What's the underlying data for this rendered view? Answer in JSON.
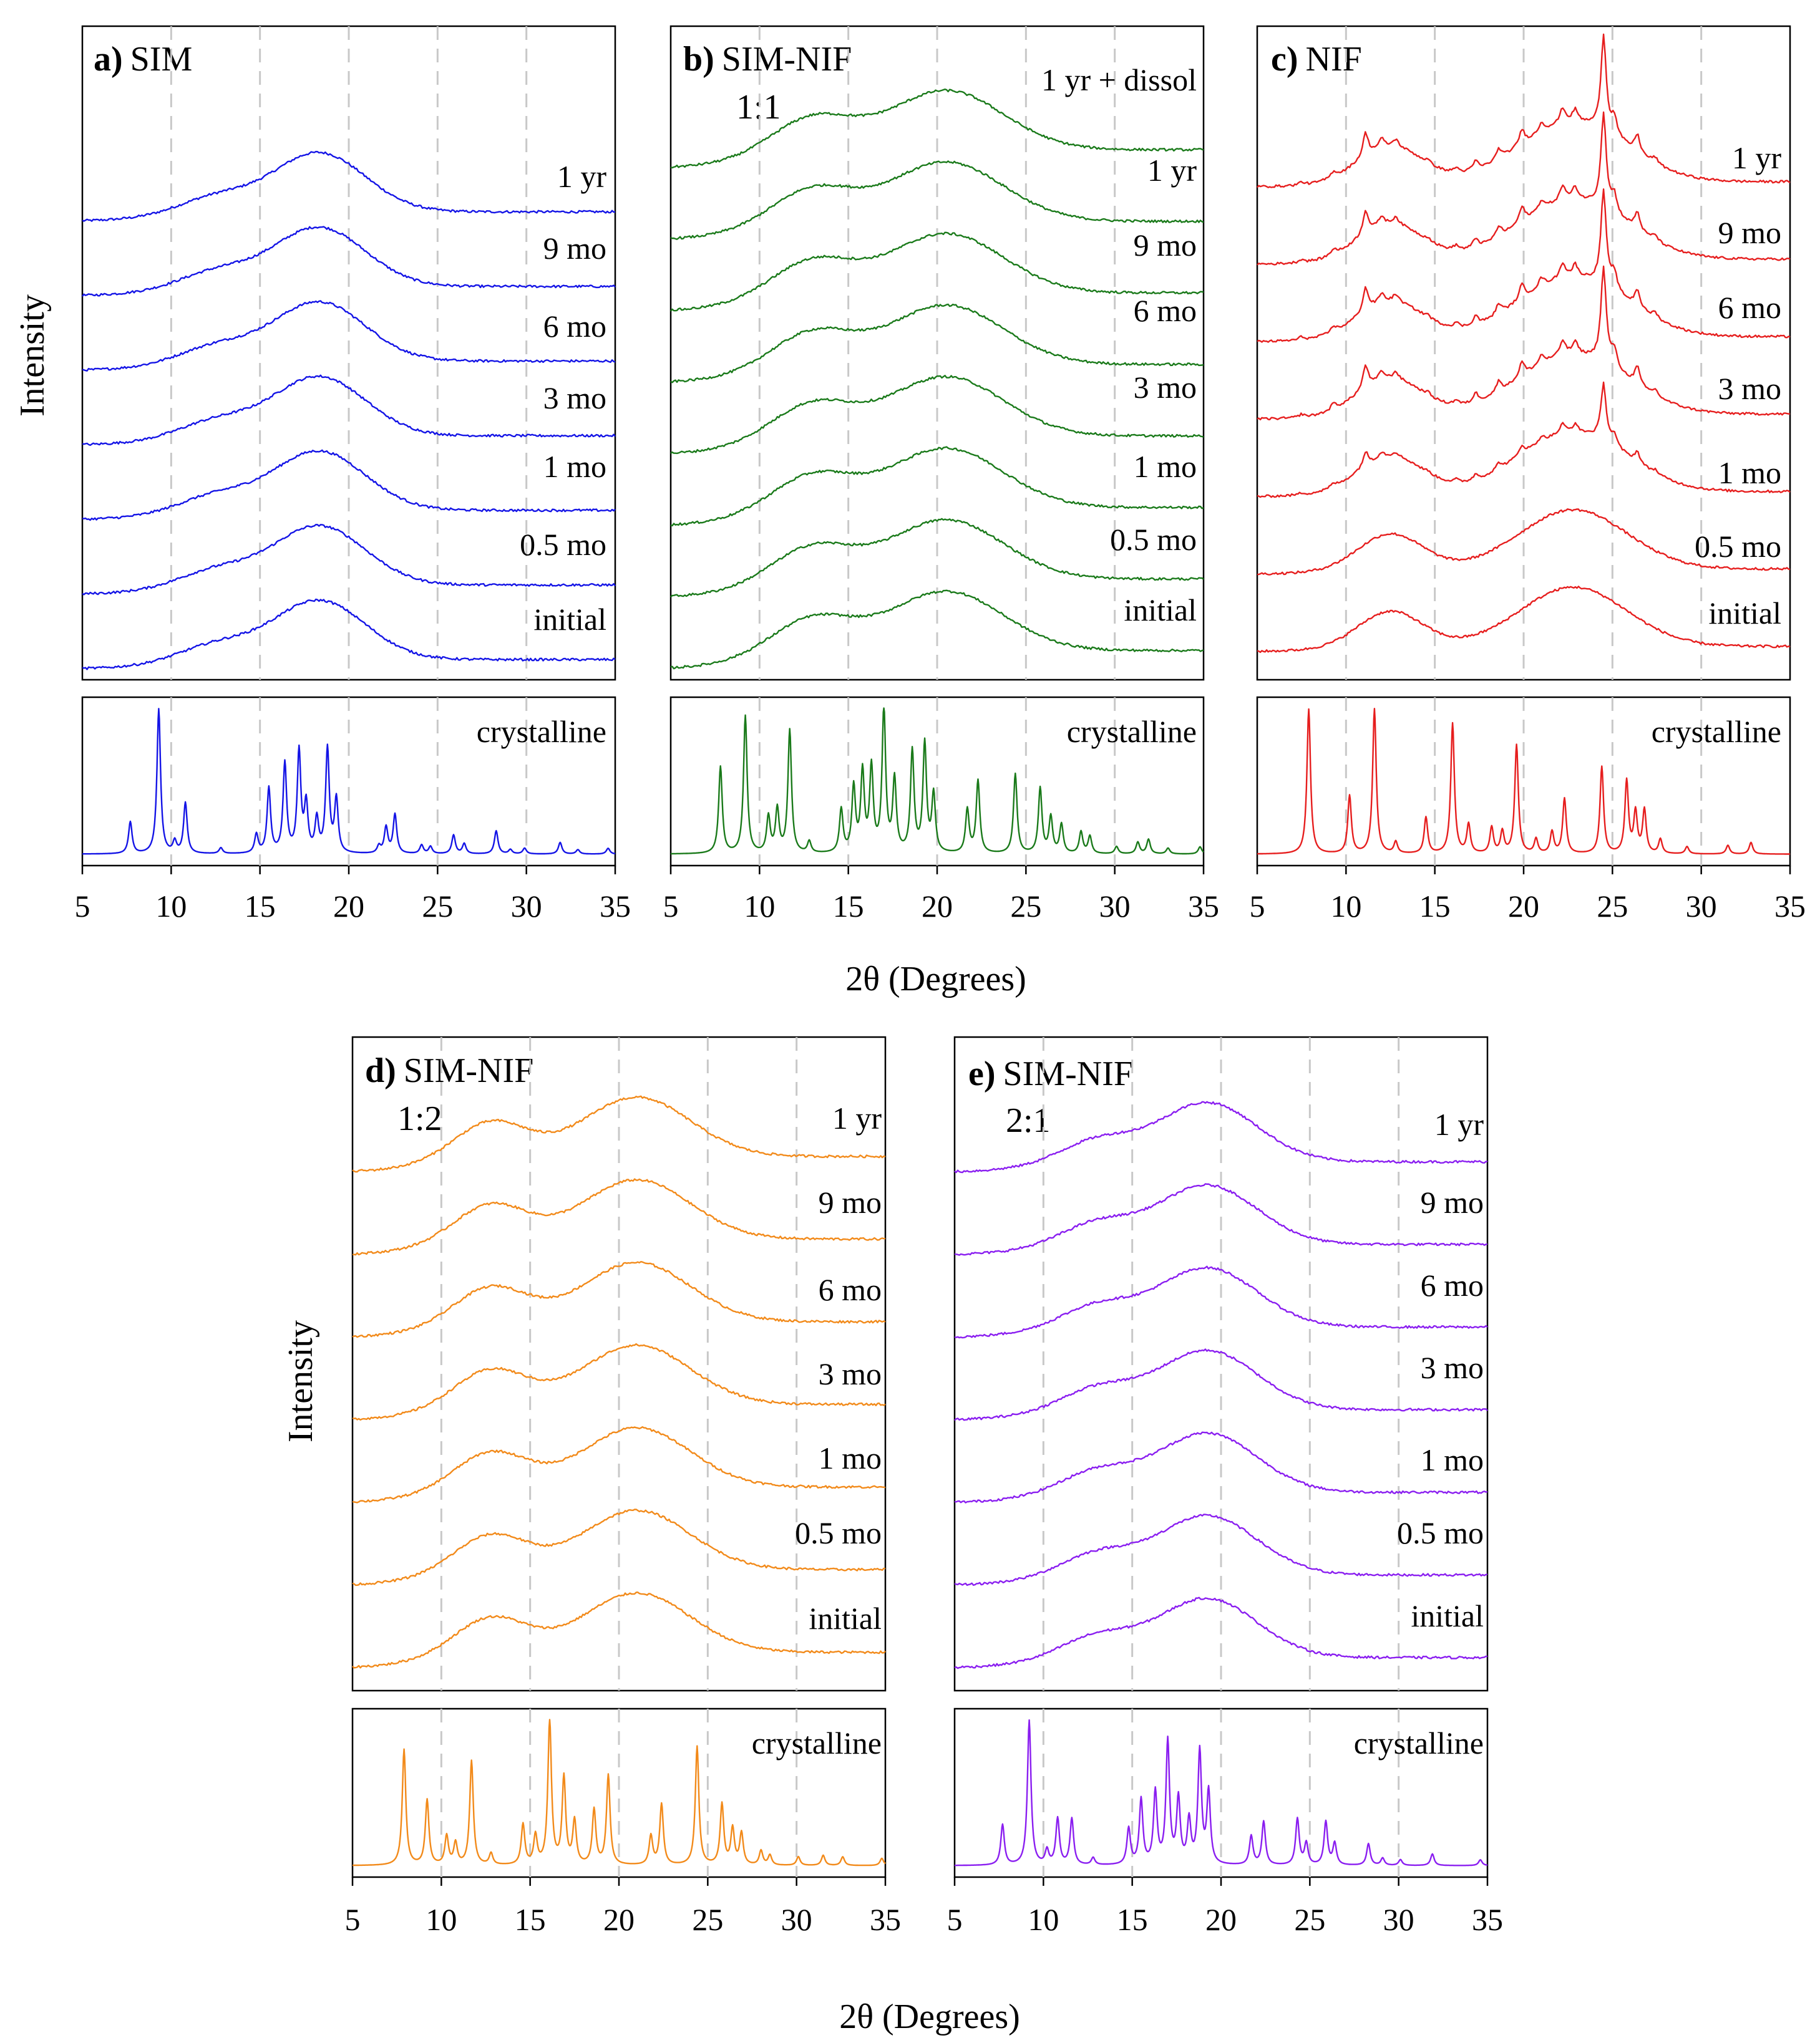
{
  "chart_data": [
    {
      "type": "line",
      "panel_letter": "a)",
      "title": "SIM",
      "subtitle": "",
      "color": "#1414e6",
      "xlabel": "2θ (Degrees)",
      "ylabel": "Intensity",
      "xlim": [
        5,
        35
      ],
      "xticks": [
        5,
        10,
        15,
        20,
        25,
        30,
        35
      ],
      "gridlines_x": [
        10,
        15,
        20,
        25,
        30
      ],
      "amorphous_profile": {
        "humps": [
          {
            "center": 18.3,
            "width": 2.6,
            "height": 1.0
          },
          {
            "center": 12.5,
            "width": 2.0,
            "height": 0.25
          }
        ],
        "start_level": 0.0,
        "end_level": 0.18
      },
      "series": [
        {
          "name": "1 yr"
        },
        {
          "name": "9 mo"
        },
        {
          "name": "6 mo"
        },
        {
          "name": "3 mo"
        },
        {
          "name": "1 mo"
        },
        {
          "name": "0.5 mo"
        },
        {
          "name": "initial"
        }
      ],
      "crystalline": {
        "name": "crystalline",
        "peaks": [
          [
            7.7,
            0.22
          ],
          [
            9.3,
            1.0
          ],
          [
            10.2,
            0.08
          ],
          [
            10.8,
            0.35
          ],
          [
            12.8,
            0.04
          ],
          [
            14.8,
            0.13
          ],
          [
            15.5,
            0.45
          ],
          [
            16.4,
            0.62
          ],
          [
            17.2,
            0.7
          ],
          [
            17.6,
            0.33
          ],
          [
            18.2,
            0.23
          ],
          [
            18.8,
            0.72
          ],
          [
            19.3,
            0.37
          ],
          [
            21.7,
            0.05
          ],
          [
            22.1,
            0.18
          ],
          [
            22.6,
            0.27
          ],
          [
            24.1,
            0.06
          ],
          [
            24.6,
            0.05
          ],
          [
            25.9,
            0.13
          ],
          [
            26.5,
            0.07
          ],
          [
            28.3,
            0.16
          ],
          [
            29.1,
            0.03
          ],
          [
            29.9,
            0.04
          ],
          [
            31.9,
            0.08
          ],
          [
            32.9,
            0.03
          ],
          [
            34.6,
            0.04
          ]
        ]
      }
    },
    {
      "type": "line",
      "panel_letter": "b)",
      "title": "SIM-NIF",
      "subtitle": "1:1",
      "color": "#1a7a1a",
      "xlabel": "2θ (Degrees)",
      "ylabel": "",
      "xlim": [
        5,
        35
      ],
      "xticks": [
        5,
        10,
        15,
        20,
        25,
        30,
        35
      ],
      "gridlines_x": [
        10,
        15,
        20,
        25,
        30
      ],
      "amorphous_profile": {
        "humps": [
          {
            "center": 20.5,
            "width": 3.2,
            "height": 1.0
          },
          {
            "center": 13.0,
            "width": 2.2,
            "height": 0.55
          }
        ],
        "start_level": 0.0,
        "end_level": 0.35
      },
      "series": [
        {
          "name": "1 yr + dissol"
        },
        {
          "name": "1 yr"
        },
        {
          "name": "9 mo"
        },
        {
          "name": "6 mo"
        },
        {
          "name": "3 mo"
        },
        {
          "name": "1 mo"
        },
        {
          "name": "0.5 mo"
        },
        {
          "name": "initial"
        }
      ],
      "crystalline": {
        "name": "crystalline",
        "peaks": [
          [
            7.8,
            0.6
          ],
          [
            9.2,
            0.95
          ],
          [
            10.5,
            0.25
          ],
          [
            11.0,
            0.3
          ],
          [
            11.7,
            0.85
          ],
          [
            12.8,
            0.08
          ],
          [
            14.6,
            0.3
          ],
          [
            15.3,
            0.45
          ],
          [
            15.8,
            0.55
          ],
          [
            16.3,
            0.58
          ],
          [
            17.0,
            1.0
          ],
          [
            17.6,
            0.5
          ],
          [
            18.6,
            0.7
          ],
          [
            19.3,
            0.75
          ],
          [
            19.8,
            0.4
          ],
          [
            21.7,
            0.3
          ],
          [
            22.3,
            0.5
          ],
          [
            24.4,
            0.55
          ],
          [
            25.8,
            0.45
          ],
          [
            26.4,
            0.25
          ],
          [
            27.0,
            0.2
          ],
          [
            28.1,
            0.15
          ],
          [
            28.6,
            0.12
          ],
          [
            30.1,
            0.05
          ],
          [
            31.3,
            0.08
          ],
          [
            31.9,
            0.1
          ],
          [
            33.0,
            0.04
          ],
          [
            34.8,
            0.05
          ]
        ]
      }
    },
    {
      "type": "line",
      "panel_letter": "c)",
      "title": "NIF",
      "subtitle": "",
      "color": "#e61e1e",
      "xlabel": "2θ (Degrees)",
      "ylabel": "",
      "xlim": [
        5,
        35
      ],
      "xticks": [
        5,
        10,
        15,
        20,
        25,
        30,
        35
      ],
      "gridlines_x": [
        10,
        15,
        20,
        25,
        30
      ],
      "amorphous_profile": {
        "humps": [
          {
            "center": 22.8,
            "width": 3.0,
            "height": 1.0
          },
          {
            "center": 12.5,
            "width": 1.8,
            "height": 0.6
          }
        ],
        "start_level": 0.0,
        "end_level": 0.1
      },
      "series": [
        {
          "name": "1 yr",
          "crystallinity": 1.0
        },
        {
          "name": "9 mo",
          "crystallinity": 1.0
        },
        {
          "name": "6 mo",
          "crystallinity": 1.0
        },
        {
          "name": "3 mo",
          "crystallinity": 1.0
        },
        {
          "name": "1 mo",
          "crystallinity": 0.6
        },
        {
          "name": "0.5 mo",
          "crystallinity": 0.0
        },
        {
          "name": "initial",
          "crystallinity": 0.0
        }
      ],
      "aged_peaks": [
        [
          7.5,
          0.05
        ],
        [
          9.3,
          0.1
        ],
        [
          11.1,
          0.4
        ],
        [
          12.0,
          0.15
        ],
        [
          12.8,
          0.12
        ],
        [
          14.6,
          0.05
        ],
        [
          16.2,
          0.08
        ],
        [
          17.3,
          0.15
        ],
        [
          18.6,
          0.18
        ],
        [
          19.9,
          0.25
        ],
        [
          21.0,
          0.15
        ],
        [
          22.2,
          0.25
        ],
        [
          22.9,
          0.2
        ],
        [
          24.5,
          1.6
        ],
        [
          25.1,
          0.3
        ],
        [
          26.4,
          0.3
        ],
        [
          27.4,
          0.1
        ]
      ],
      "crystalline": {
        "name": "crystalline",
        "peaks": [
          [
            7.9,
            1.0
          ],
          [
            10.2,
            0.4
          ],
          [
            11.6,
            1.0
          ],
          [
            12.8,
            0.08
          ],
          [
            14.5,
            0.25
          ],
          [
            16.0,
            0.9
          ],
          [
            16.9,
            0.2
          ],
          [
            18.2,
            0.18
          ],
          [
            18.8,
            0.15
          ],
          [
            19.6,
            0.75
          ],
          [
            20.7,
            0.1
          ],
          [
            21.6,
            0.15
          ],
          [
            22.3,
            0.38
          ],
          [
            24.4,
            0.6
          ],
          [
            25.8,
            0.5
          ],
          [
            26.3,
            0.28
          ],
          [
            26.8,
            0.3
          ],
          [
            27.7,
            0.1
          ],
          [
            29.2,
            0.05
          ],
          [
            31.5,
            0.06
          ],
          [
            32.8,
            0.08
          ]
        ]
      }
    },
    {
      "type": "line",
      "panel_letter": "d)",
      "title": "SIM-NIF",
      "subtitle": "1:2",
      "color": "#f28a1a",
      "xlabel": "2θ (Degrees)",
      "ylabel": "Intensity",
      "xlim": [
        5,
        35
      ],
      "xticks": [
        5,
        10,
        15,
        20,
        25,
        30,
        35
      ],
      "gridlines_x": [
        10,
        15,
        20,
        25,
        30
      ],
      "amorphous_profile": {
        "humps": [
          {
            "center": 21.0,
            "width": 3.0,
            "height": 1.0
          },
          {
            "center": 12.8,
            "width": 2.0,
            "height": 0.6
          }
        ],
        "start_level": 0.0,
        "end_level": 0.3
      },
      "series": [
        {
          "name": "1 yr"
        },
        {
          "name": "9 mo"
        },
        {
          "name": "6 mo"
        },
        {
          "name": "3 mo"
        },
        {
          "name": "1 mo"
        },
        {
          "name": "0.5 mo"
        },
        {
          "name": "initial"
        }
      ],
      "crystalline": {
        "name": "crystalline",
        "peaks": [
          [
            7.9,
            0.8
          ],
          [
            9.2,
            0.45
          ],
          [
            10.3,
            0.2
          ],
          [
            10.8,
            0.15
          ],
          [
            11.7,
            0.72
          ],
          [
            12.8,
            0.08
          ],
          [
            14.6,
            0.28
          ],
          [
            15.3,
            0.2
          ],
          [
            16.1,
            1.0
          ],
          [
            16.9,
            0.6
          ],
          [
            17.5,
            0.3
          ],
          [
            18.6,
            0.38
          ],
          [
            19.4,
            0.62
          ],
          [
            21.8,
            0.2
          ],
          [
            22.4,
            0.42
          ],
          [
            24.4,
            0.82
          ],
          [
            25.8,
            0.42
          ],
          [
            26.4,
            0.25
          ],
          [
            26.9,
            0.22
          ],
          [
            28.0,
            0.1
          ],
          [
            28.5,
            0.07
          ],
          [
            30.1,
            0.06
          ],
          [
            31.5,
            0.07
          ],
          [
            32.6,
            0.06
          ],
          [
            34.8,
            0.05
          ]
        ]
      }
    },
    {
      "type": "line",
      "panel_letter": "e)",
      "title": "SIM-NIF",
      "subtitle": "2:1",
      "color": "#8a1ef0",
      "xlabel": "2θ (Degrees)",
      "ylabel": "",
      "xlim": [
        5,
        35
      ],
      "xticks": [
        5,
        10,
        15,
        20,
        25,
        30,
        35
      ],
      "gridlines_x": [
        10,
        15,
        20,
        25,
        30
      ],
      "amorphous_profile": {
        "humps": [
          {
            "center": 19.2,
            "width": 2.8,
            "height": 1.0
          },
          {
            "center": 13.0,
            "width": 2.0,
            "height": 0.35
          }
        ],
        "start_level": 0.0,
        "end_level": 0.2
      },
      "series": [
        {
          "name": "1 yr"
        },
        {
          "name": "9 mo"
        },
        {
          "name": "6 mo"
        },
        {
          "name": "3 mo"
        },
        {
          "name": "1 mo"
        },
        {
          "name": "0.5 mo"
        },
        {
          "name": "initial"
        }
      ],
      "crystalline": {
        "name": "crystalline",
        "peaks": [
          [
            7.7,
            0.28
          ],
          [
            9.2,
            1.0
          ],
          [
            10.2,
            0.1
          ],
          [
            10.8,
            0.32
          ],
          [
            11.6,
            0.32
          ],
          [
            12.8,
            0.05
          ],
          [
            14.8,
            0.25
          ],
          [
            15.5,
            0.45
          ],
          [
            16.3,
            0.5
          ],
          [
            17.0,
            0.85
          ],
          [
            17.6,
            0.45
          ],
          [
            18.2,
            0.3
          ],
          [
            18.8,
            0.78
          ],
          [
            19.3,
            0.5
          ],
          [
            21.7,
            0.2
          ],
          [
            22.4,
            0.3
          ],
          [
            24.3,
            0.32
          ],
          [
            24.8,
            0.15
          ],
          [
            25.9,
            0.3
          ],
          [
            26.4,
            0.15
          ],
          [
            28.3,
            0.15
          ],
          [
            29.1,
            0.05
          ],
          [
            30.1,
            0.04
          ],
          [
            31.9,
            0.08
          ],
          [
            34.6,
            0.04
          ]
        ]
      }
    }
  ]
}
